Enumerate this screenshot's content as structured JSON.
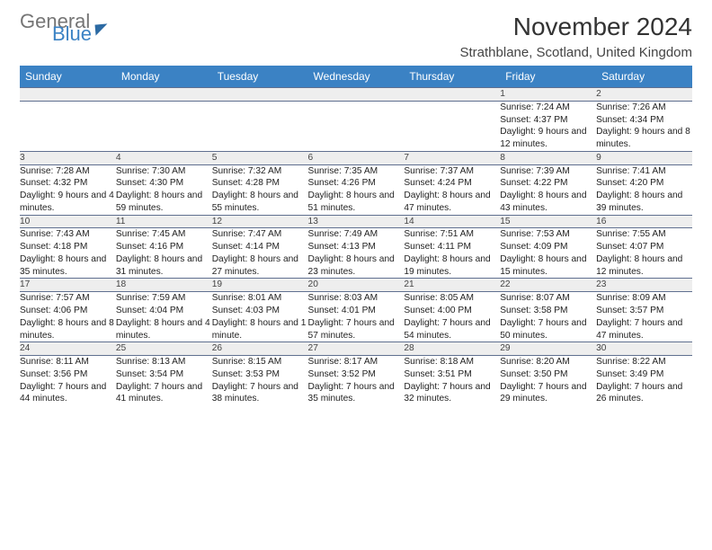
{
  "logo": {
    "text1": "General",
    "text2": "Blue"
  },
  "title": "November 2024",
  "location": "Strathblane, Scotland, United Kingdom",
  "colors": {
    "header_bg": "#3b82c4",
    "header_fg": "#ffffff",
    "daynum_bg": "#eeeeee",
    "border": "#607090",
    "logo_gray": "#757575",
    "logo_blue": "#3b82c4"
  },
  "days": [
    "Sunday",
    "Monday",
    "Tuesday",
    "Wednesday",
    "Thursday",
    "Friday",
    "Saturday"
  ],
  "weeks": [
    [
      null,
      null,
      null,
      null,
      null,
      {
        "n": "1",
        "sr": "Sunrise: 7:24 AM",
        "ss": "Sunset: 4:37 PM",
        "dl": "Daylight: 9 hours and 12 minutes."
      },
      {
        "n": "2",
        "sr": "Sunrise: 7:26 AM",
        "ss": "Sunset: 4:34 PM",
        "dl": "Daylight: 9 hours and 8 minutes."
      }
    ],
    [
      {
        "n": "3",
        "sr": "Sunrise: 7:28 AM",
        "ss": "Sunset: 4:32 PM",
        "dl": "Daylight: 9 hours and 4 minutes."
      },
      {
        "n": "4",
        "sr": "Sunrise: 7:30 AM",
        "ss": "Sunset: 4:30 PM",
        "dl": "Daylight: 8 hours and 59 minutes."
      },
      {
        "n": "5",
        "sr": "Sunrise: 7:32 AM",
        "ss": "Sunset: 4:28 PM",
        "dl": "Daylight: 8 hours and 55 minutes."
      },
      {
        "n": "6",
        "sr": "Sunrise: 7:35 AM",
        "ss": "Sunset: 4:26 PM",
        "dl": "Daylight: 8 hours and 51 minutes."
      },
      {
        "n": "7",
        "sr": "Sunrise: 7:37 AM",
        "ss": "Sunset: 4:24 PM",
        "dl": "Daylight: 8 hours and 47 minutes."
      },
      {
        "n": "8",
        "sr": "Sunrise: 7:39 AM",
        "ss": "Sunset: 4:22 PM",
        "dl": "Daylight: 8 hours and 43 minutes."
      },
      {
        "n": "9",
        "sr": "Sunrise: 7:41 AM",
        "ss": "Sunset: 4:20 PM",
        "dl": "Daylight: 8 hours and 39 minutes."
      }
    ],
    [
      {
        "n": "10",
        "sr": "Sunrise: 7:43 AM",
        "ss": "Sunset: 4:18 PM",
        "dl": "Daylight: 8 hours and 35 minutes."
      },
      {
        "n": "11",
        "sr": "Sunrise: 7:45 AM",
        "ss": "Sunset: 4:16 PM",
        "dl": "Daylight: 8 hours and 31 minutes."
      },
      {
        "n": "12",
        "sr": "Sunrise: 7:47 AM",
        "ss": "Sunset: 4:14 PM",
        "dl": "Daylight: 8 hours and 27 minutes."
      },
      {
        "n": "13",
        "sr": "Sunrise: 7:49 AM",
        "ss": "Sunset: 4:13 PM",
        "dl": "Daylight: 8 hours and 23 minutes."
      },
      {
        "n": "14",
        "sr": "Sunrise: 7:51 AM",
        "ss": "Sunset: 4:11 PM",
        "dl": "Daylight: 8 hours and 19 minutes."
      },
      {
        "n": "15",
        "sr": "Sunrise: 7:53 AM",
        "ss": "Sunset: 4:09 PM",
        "dl": "Daylight: 8 hours and 15 minutes."
      },
      {
        "n": "16",
        "sr": "Sunrise: 7:55 AM",
        "ss": "Sunset: 4:07 PM",
        "dl": "Daylight: 8 hours and 12 minutes."
      }
    ],
    [
      {
        "n": "17",
        "sr": "Sunrise: 7:57 AM",
        "ss": "Sunset: 4:06 PM",
        "dl": "Daylight: 8 hours and 8 minutes."
      },
      {
        "n": "18",
        "sr": "Sunrise: 7:59 AM",
        "ss": "Sunset: 4:04 PM",
        "dl": "Daylight: 8 hours and 4 minutes."
      },
      {
        "n": "19",
        "sr": "Sunrise: 8:01 AM",
        "ss": "Sunset: 4:03 PM",
        "dl": "Daylight: 8 hours and 1 minute."
      },
      {
        "n": "20",
        "sr": "Sunrise: 8:03 AM",
        "ss": "Sunset: 4:01 PM",
        "dl": "Daylight: 7 hours and 57 minutes."
      },
      {
        "n": "21",
        "sr": "Sunrise: 8:05 AM",
        "ss": "Sunset: 4:00 PM",
        "dl": "Daylight: 7 hours and 54 minutes."
      },
      {
        "n": "22",
        "sr": "Sunrise: 8:07 AM",
        "ss": "Sunset: 3:58 PM",
        "dl": "Daylight: 7 hours and 50 minutes."
      },
      {
        "n": "23",
        "sr": "Sunrise: 8:09 AM",
        "ss": "Sunset: 3:57 PM",
        "dl": "Daylight: 7 hours and 47 minutes."
      }
    ],
    [
      {
        "n": "24",
        "sr": "Sunrise: 8:11 AM",
        "ss": "Sunset: 3:56 PM",
        "dl": "Daylight: 7 hours and 44 minutes."
      },
      {
        "n": "25",
        "sr": "Sunrise: 8:13 AM",
        "ss": "Sunset: 3:54 PM",
        "dl": "Daylight: 7 hours and 41 minutes."
      },
      {
        "n": "26",
        "sr": "Sunrise: 8:15 AM",
        "ss": "Sunset: 3:53 PM",
        "dl": "Daylight: 7 hours and 38 minutes."
      },
      {
        "n": "27",
        "sr": "Sunrise: 8:17 AM",
        "ss": "Sunset: 3:52 PM",
        "dl": "Daylight: 7 hours and 35 minutes."
      },
      {
        "n": "28",
        "sr": "Sunrise: 8:18 AM",
        "ss": "Sunset: 3:51 PM",
        "dl": "Daylight: 7 hours and 32 minutes."
      },
      {
        "n": "29",
        "sr": "Sunrise: 8:20 AM",
        "ss": "Sunset: 3:50 PM",
        "dl": "Daylight: 7 hours and 29 minutes."
      },
      {
        "n": "30",
        "sr": "Sunrise: 8:22 AM",
        "ss": "Sunset: 3:49 PM",
        "dl": "Daylight: 7 hours and 26 minutes."
      }
    ]
  ]
}
